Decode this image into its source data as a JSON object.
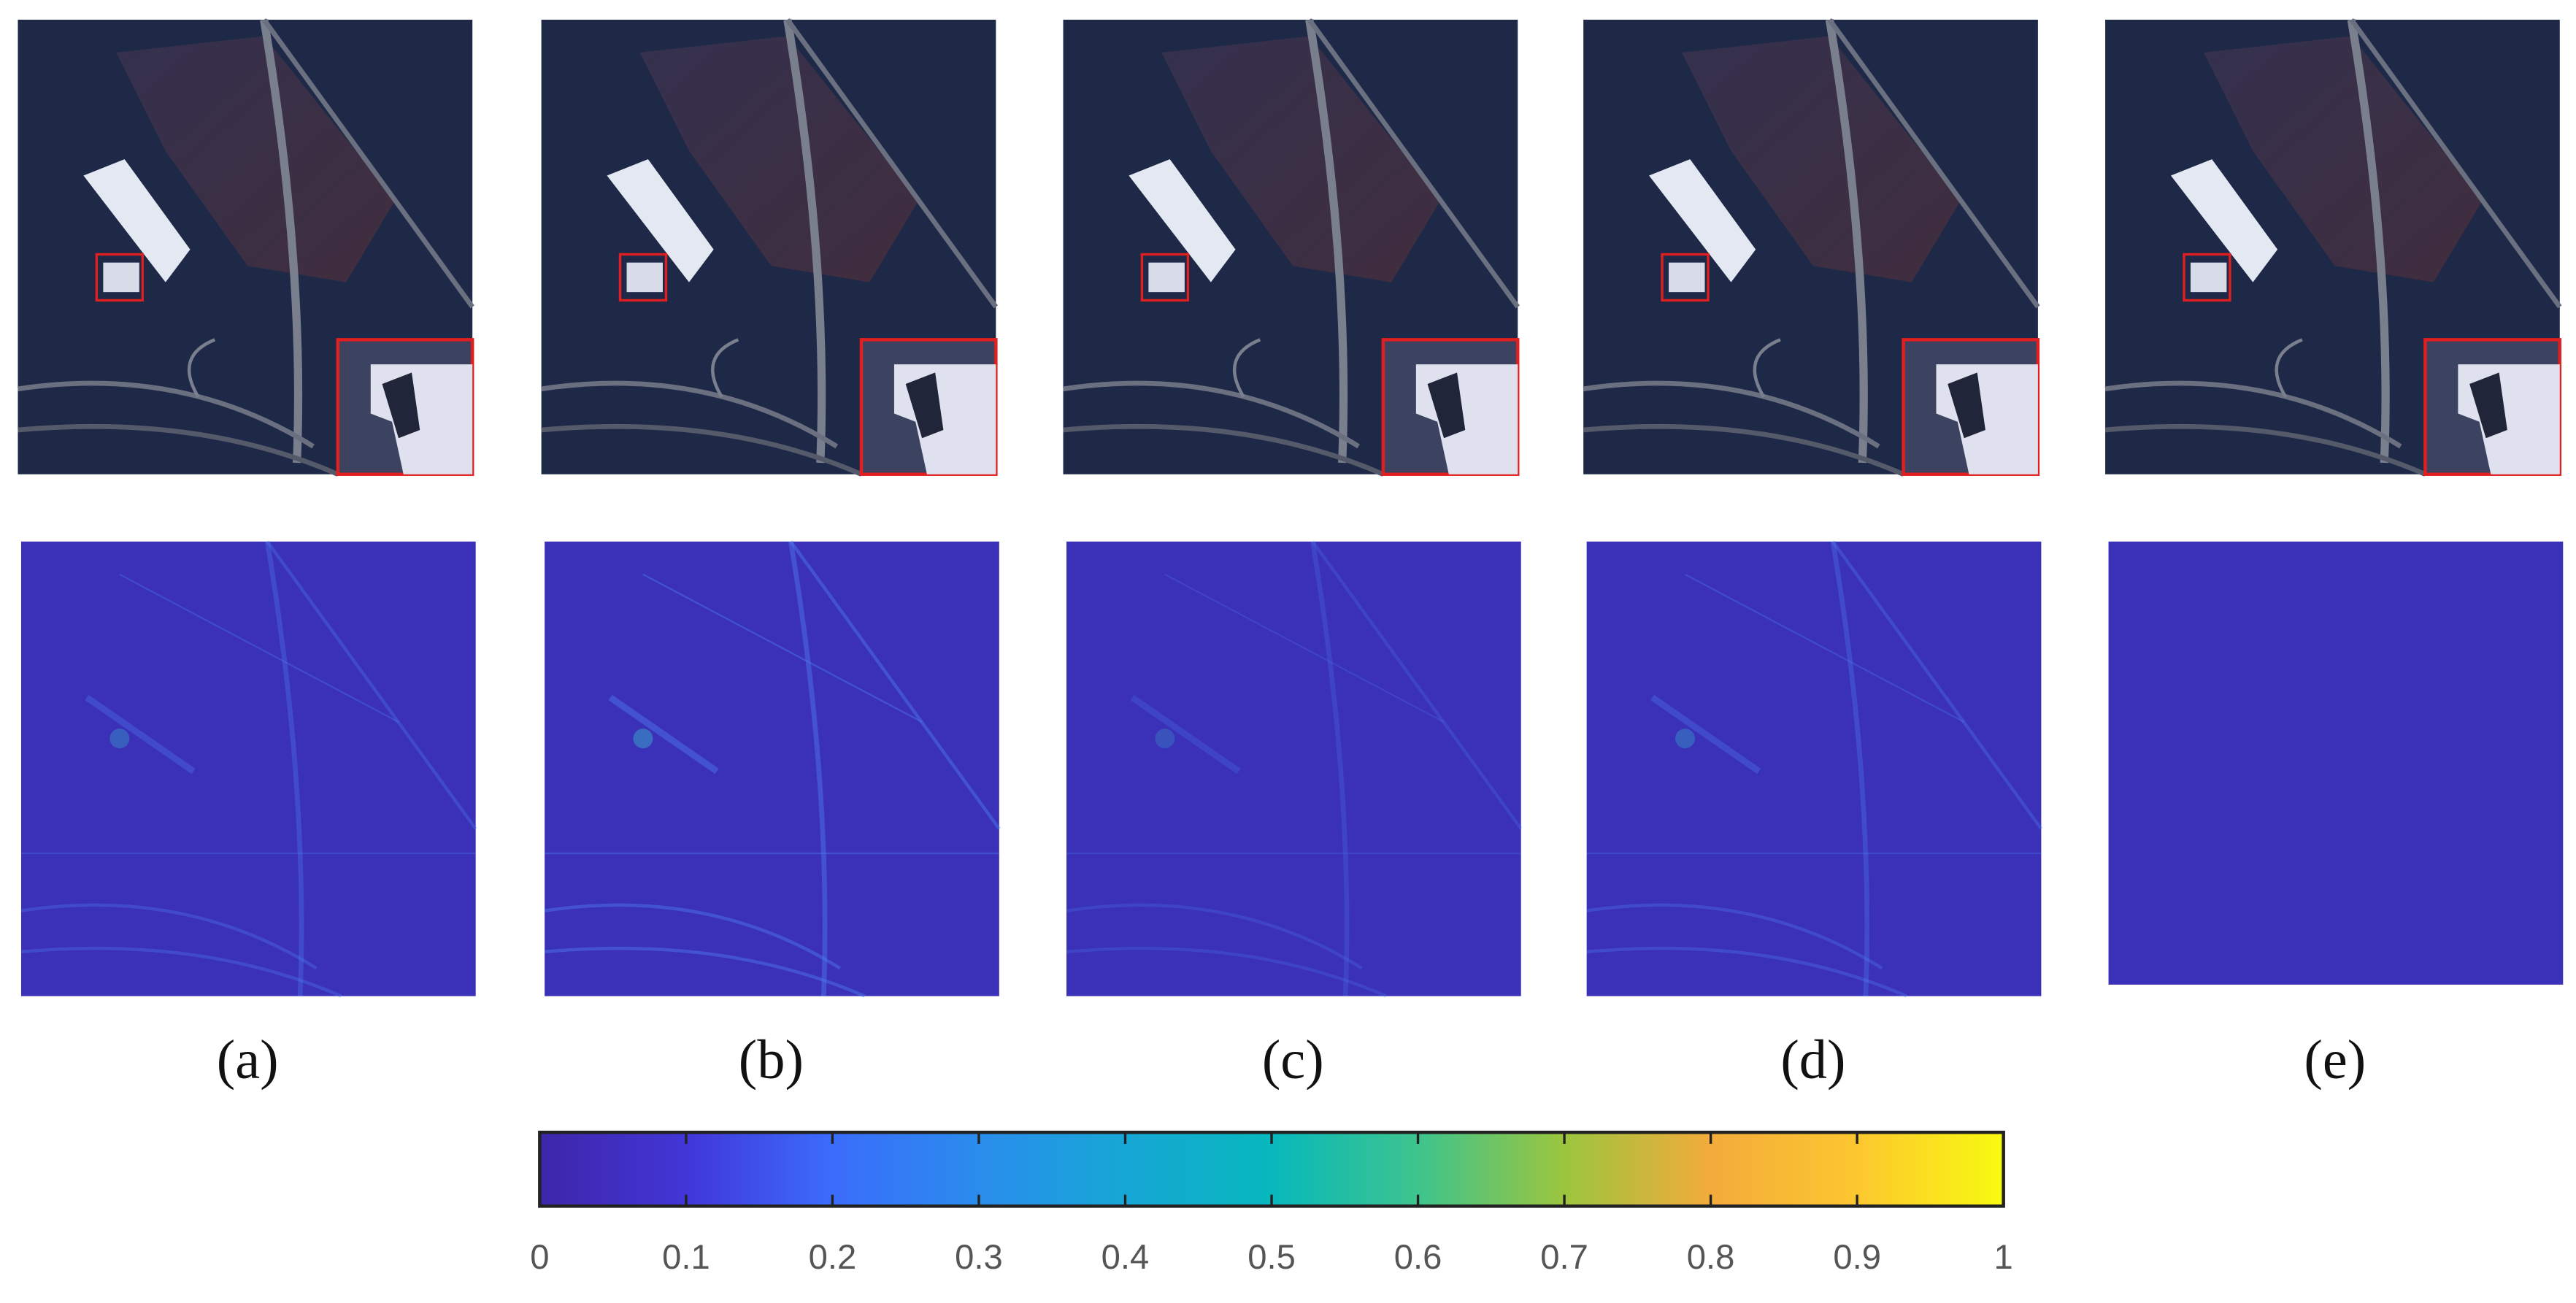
{
  "panels": [
    {
      "label": "(a)"
    },
    {
      "label": "(b)"
    },
    {
      "label": "(c)"
    },
    {
      "label": "(d)"
    },
    {
      "label": "(e)"
    }
  ],
  "colorbar": {
    "range": [
      0,
      1
    ],
    "ticks": [
      0,
      0.1,
      0.2,
      0.3,
      0.4,
      0.5,
      0.6,
      0.7,
      0.8,
      0.9,
      1
    ]
  }
}
